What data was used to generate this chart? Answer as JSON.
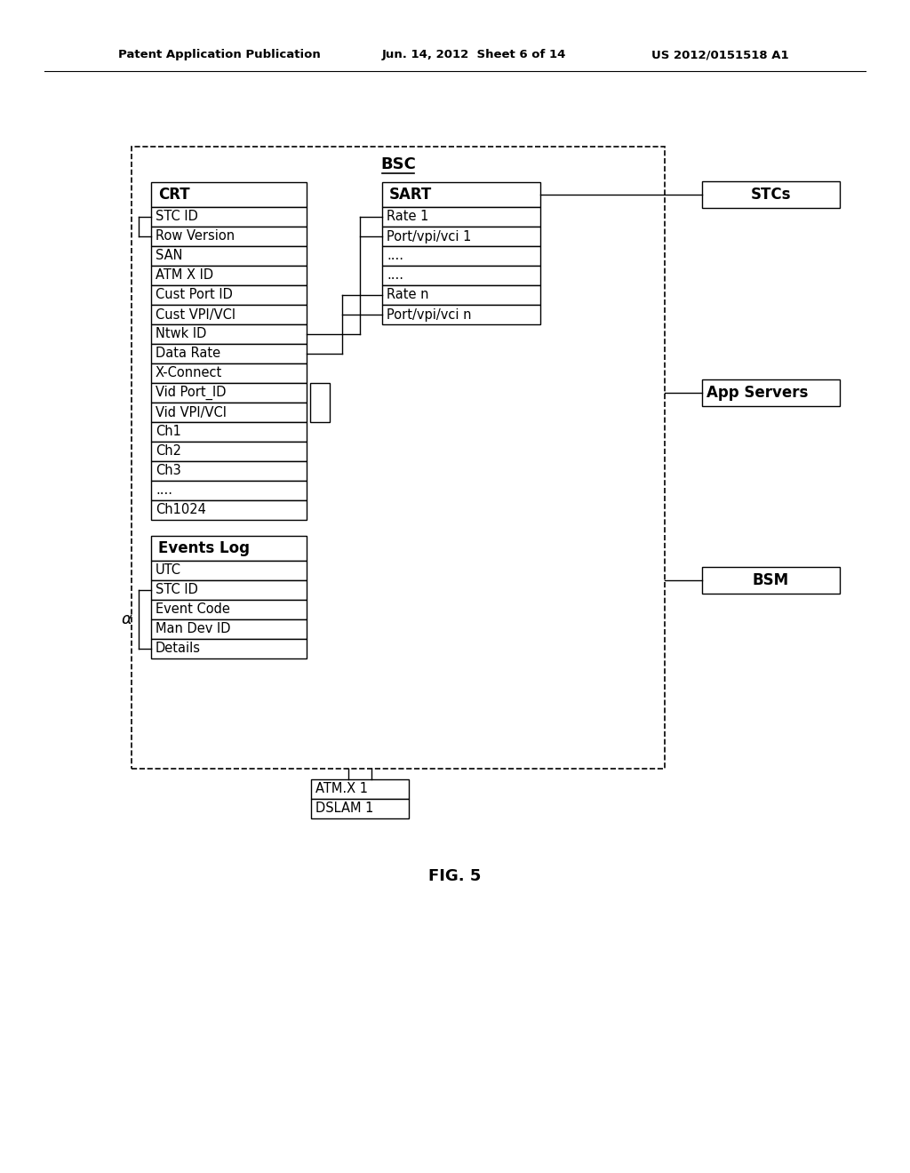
{
  "bg_color": "#ffffff",
  "header_left": "Patent Application Publication",
  "header_mid": "Jun. 14, 2012  Sheet 6 of 14",
  "header_right": "US 2012/0151518 A1",
  "fig_label": "FIG. 5",
  "bsc_label": "BSC",
  "crt_label": "CRT",
  "crt_rows": [
    "STC ID",
    "Row Version",
    "SAN",
    "ATM X ID",
    "Cust Port ID",
    "Cust VPI/VCI",
    "Ntwk ID",
    "Data Rate",
    "X-Connect",
    "Vid Port_ID",
    "Vid VPI/VCI",
    "Ch1",
    "Ch2",
    "Ch3",
    "....",
    "Ch1024"
  ],
  "events_label": "Events Log",
  "events_rows": [
    "UTC",
    "STC ID",
    "Event Code",
    "Man Dev ID",
    "Details"
  ],
  "sart_label": "SART",
  "sart_rows": [
    "Rate 1",
    "Port/vpi/vci 1",
    "....",
    "....",
    "Rate n",
    "Port/vpi/vci n"
  ],
  "stcs_label": "STCs",
  "app_servers_label": "App Servers",
  "bsm_label": "BSM",
  "atm_rows": [
    "ATM.X 1",
    "DSLAM 1"
  ]
}
